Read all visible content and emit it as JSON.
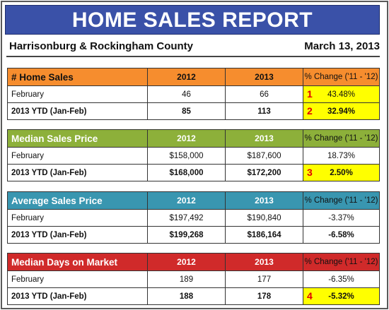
{
  "report": {
    "title": "HOME SALES REPORT",
    "location": "Harrisonburg & Rockingham County",
    "date": "March 13, 2013"
  },
  "colors": {
    "title_bg": "#3a51a8",
    "home_sales": "#f68d2e",
    "median_price": "#8db03a",
    "average_price": "#3996b0",
    "median_days": "#d02a2a",
    "highlight": "#ffff00",
    "marker": "#e00000"
  },
  "tables": [
    {
      "title": "# Home Sales",
      "col_2012": "2012",
      "col_2013": "2013",
      "col_change": "% Change ('11 - '12)",
      "rows": [
        {
          "label": "February",
          "v2012": "46",
          "v2013": "66",
          "change": "43.48%",
          "marker": "1"
        },
        {
          "label": "2013 YTD (Jan-Feb)",
          "v2012": "85",
          "v2013": "113",
          "change": "32.94%",
          "marker": "2"
        }
      ]
    },
    {
      "title": "Median Sales Price",
      "col_2012": "2012",
      "col_2013": "2013",
      "col_change": "% Change ('11 - '12)",
      "rows": [
        {
          "label": "February",
          "v2012": "$158,000",
          "v2013": "$187,600",
          "change": "18.73%"
        },
        {
          "label": "2013 YTD (Jan-Feb)",
          "v2012": "$168,000",
          "v2013": "$172,200",
          "change": "2.50%",
          "marker": "3"
        }
      ]
    },
    {
      "title": "Average Sales Price",
      "col_2012": "2012",
      "col_2013": "2013",
      "col_change": "% Change ('11 - '12)",
      "rows": [
        {
          "label": "February",
          "v2012": "$197,492",
          "v2013": "$190,840",
          "change": "-3.37%"
        },
        {
          "label": "2013 YTD (Jan-Feb)",
          "v2012": "$199,268",
          "v2013": "$186,164",
          "change": "-6.58%"
        }
      ]
    },
    {
      "title": "Median Days on Market",
      "col_2012": "2012",
      "col_2013": "2013",
      "col_change": "% Change ('11 - '12)",
      "rows": [
        {
          "label": "February",
          "v2012": "189",
          "v2013": "177",
          "change": "-6.35%"
        },
        {
          "label": "2013 YTD (Jan-Feb)",
          "v2012": "188",
          "v2013": "178",
          "change": "-5.32%",
          "marker": "4"
        }
      ]
    }
  ]
}
